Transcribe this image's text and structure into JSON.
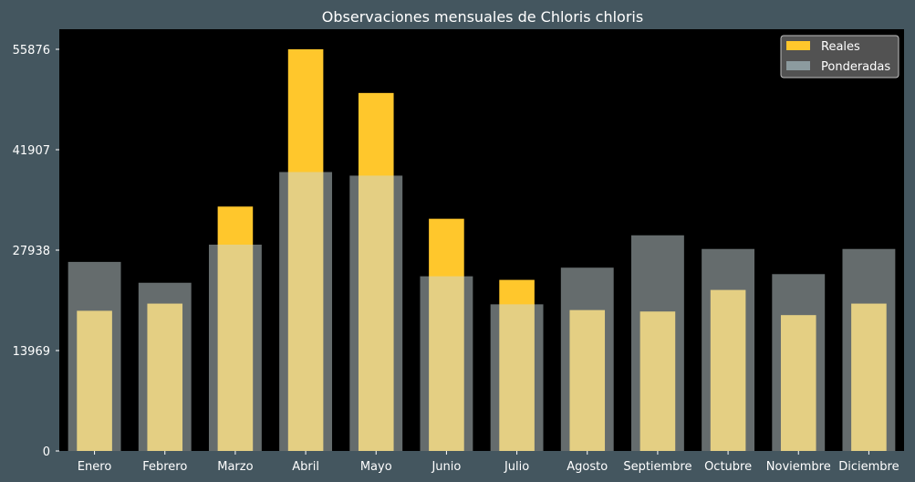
{
  "chart_data": {
    "type": "bar",
    "title": "Observaciones mensuales de Chloris chloris",
    "xlabel": "",
    "ylabel": "",
    "categories": [
      "Enero",
      "Febrero",
      "Marzo",
      "Abril",
      "Mayo",
      "Junio",
      "Julio",
      "Agosto",
      "Septiembre",
      "Octubre",
      "Noviembre",
      "Diciembre"
    ],
    "series": [
      {
        "name": "Reales",
        "color": "#ffc72c",
        "values": [
          19500,
          20500,
          34000,
          55876,
          49800,
          32300,
          23800,
          19600,
          19400,
          22400,
          18900,
          20500
        ]
      },
      {
        "name": "Ponderadas",
        "color": "#c9d7d9",
        "values": [
          26300,
          23400,
          28700,
          38800,
          38300,
          24300,
          20400,
          25500,
          30000,
          28100,
          24600,
          28100
        ]
      }
    ],
    "yticks": [
      0,
      13969,
      27938,
      41907,
      55876
    ],
    "ylim": [
      0,
      58670
    ],
    "legend": {
      "placement": "top-right"
    },
    "grid": false,
    "plot_background": "#000000",
    "page_background": "#44565f"
  }
}
